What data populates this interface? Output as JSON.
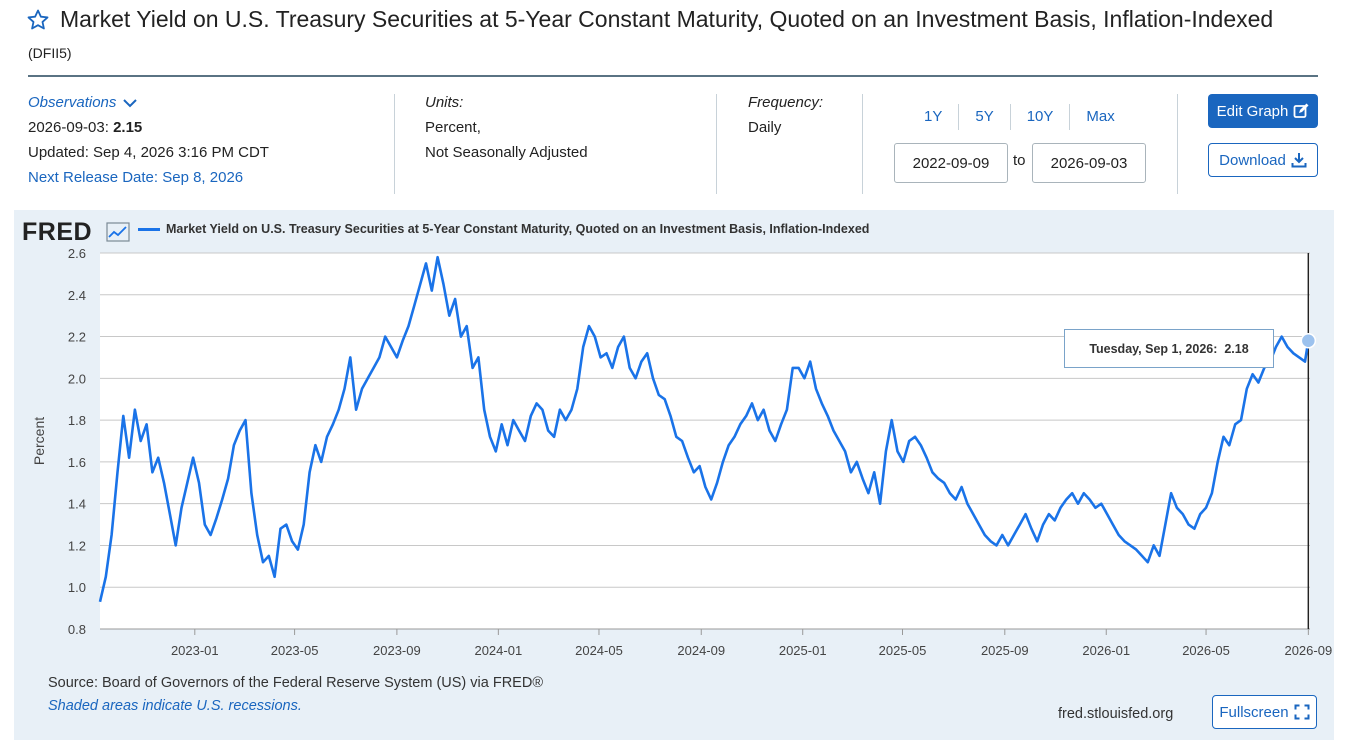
{
  "header": {
    "title": "Market Yield on U.S. Treasury Securities at 5-Year Constant Maturity, Quoted on an Investment Basis, Inflation-Indexed",
    "series_id": "(DFII5)"
  },
  "observations": {
    "label": "Observations",
    "latest_date": "2026-09-03:",
    "latest_value": "2.15",
    "updated": "Updated: Sep 4, 2026 3:16 PM CDT",
    "next_release": "Next Release Date: Sep 8, 2026"
  },
  "units": {
    "label": "Units:",
    "line1": "Percent,",
    "line2": "Not Seasonally Adjusted"
  },
  "frequency": {
    "label": "Frequency:",
    "value": "Daily"
  },
  "range": {
    "buttons": [
      "1Y",
      "5Y",
      "10Y",
      "Max"
    ],
    "start": "2022-09-09",
    "to_label": "to",
    "end": "2026-09-03"
  },
  "actions": {
    "edit": "Edit Graph",
    "download": "Download",
    "fullscreen": "Fullscreen"
  },
  "colors": {
    "series": "#1a73e8",
    "link": "#1a66bf",
    "panel": "#e8f0f7"
  },
  "icons": {
    "star": "star-icon",
    "chevron": "chevron-down-icon",
    "edit": "edit-icon",
    "download": "download-icon",
    "fullscreen": "fullscreen-icon",
    "logo_graph": "graph-icon"
  },
  "footer": {
    "source": "Source: Board of Governors of the Federal Reserve System (US) via FRED®",
    "recession_note": "Shaded areas indicate U.S. recessions.",
    "site": "fred.stlouisfed.org"
  },
  "logo": {
    "text": "FRED"
  },
  "tooltip": {
    "date": "Tuesday, Sep 1, 2026:",
    "value": "2.18"
  },
  "chart_data": {
    "type": "line",
    "title": "Market Yield on U.S. Treasury Securities at 5-Year Constant Maturity, Quoted on an Investment Basis, Inflation-Indexed",
    "ylabel": "Percent",
    "xlabel": "",
    "ylim": [
      0.8,
      2.6
    ],
    "xlim": [
      "2022-09-09",
      "2026-09-03"
    ],
    "yticks": [
      0.8,
      1.0,
      1.2,
      1.4,
      1.6,
      1.8,
      2.0,
      2.2,
      2.4,
      2.6
    ],
    "xticks": [
      "2023-01",
      "2023-05",
      "2023-09",
      "2024-01",
      "2024-05",
      "2024-09",
      "2025-01",
      "2025-05",
      "2025-09",
      "2026-01",
      "2026-05",
      "2026-09"
    ],
    "grid": true,
    "legend": "top-left",
    "series": [
      {
        "name": "Market Yield on U.S. Treasury Securities at 5-Year Constant Maturity, Quoted on an Investment Basis, Inflation-Indexed",
        "points": [
          [
            "2022-09-09",
            0.93
          ],
          [
            "2022-09-16",
            1.05
          ],
          [
            "2022-09-23",
            1.25
          ],
          [
            "2022-09-30",
            1.55
          ],
          [
            "2022-10-07",
            1.82
          ],
          [
            "2022-10-14",
            1.62
          ],
          [
            "2022-10-21",
            1.85
          ],
          [
            "2022-10-28",
            1.7
          ],
          [
            "2022-11-04",
            1.78
          ],
          [
            "2022-11-11",
            1.55
          ],
          [
            "2022-11-18",
            1.62
          ],
          [
            "2022-11-25",
            1.5
          ],
          [
            "2022-12-02",
            1.35
          ],
          [
            "2022-12-09",
            1.2
          ],
          [
            "2022-12-16",
            1.38
          ],
          [
            "2022-12-23",
            1.5
          ],
          [
            "2022-12-30",
            1.62
          ],
          [
            "2023-01-06",
            1.5
          ],
          [
            "2023-01-13",
            1.3
          ],
          [
            "2023-01-20",
            1.25
          ],
          [
            "2023-01-27",
            1.33
          ],
          [
            "2023-02-03",
            1.42
          ],
          [
            "2023-02-10",
            1.52
          ],
          [
            "2023-02-17",
            1.68
          ],
          [
            "2023-02-24",
            1.75
          ],
          [
            "2023-03-03",
            1.8
          ],
          [
            "2023-03-10",
            1.45
          ],
          [
            "2023-03-17",
            1.25
          ],
          [
            "2023-03-24",
            1.12
          ],
          [
            "2023-03-31",
            1.15
          ],
          [
            "2023-04-07",
            1.05
          ],
          [
            "2023-04-14",
            1.28
          ],
          [
            "2023-04-21",
            1.3
          ],
          [
            "2023-04-28",
            1.22
          ],
          [
            "2023-05-05",
            1.18
          ],
          [
            "2023-05-12",
            1.3
          ],
          [
            "2023-05-19",
            1.55
          ],
          [
            "2023-05-26",
            1.68
          ],
          [
            "2023-06-02",
            1.6
          ],
          [
            "2023-06-09",
            1.72
          ],
          [
            "2023-06-16",
            1.78
          ],
          [
            "2023-06-23",
            1.85
          ],
          [
            "2023-06-30",
            1.95
          ],
          [
            "2023-07-07",
            2.1
          ],
          [
            "2023-07-14",
            1.85
          ],
          [
            "2023-07-21",
            1.95
          ],
          [
            "2023-07-28",
            2.0
          ],
          [
            "2023-08-04",
            2.05
          ],
          [
            "2023-08-11",
            2.1
          ],
          [
            "2023-08-18",
            2.2
          ],
          [
            "2023-08-25",
            2.15
          ],
          [
            "2023-09-01",
            2.1
          ],
          [
            "2023-09-08",
            2.18
          ],
          [
            "2023-09-15",
            2.25
          ],
          [
            "2023-09-22",
            2.35
          ],
          [
            "2023-09-29",
            2.45
          ],
          [
            "2023-10-06",
            2.55
          ],
          [
            "2023-10-13",
            2.42
          ],
          [
            "2023-10-20",
            2.58
          ],
          [
            "2023-10-27",
            2.45
          ],
          [
            "2023-11-03",
            2.3
          ],
          [
            "2023-11-10",
            2.38
          ],
          [
            "2023-11-17",
            2.2
          ],
          [
            "2023-11-24",
            2.25
          ],
          [
            "2023-12-01",
            2.05
          ],
          [
            "2023-12-08",
            2.1
          ],
          [
            "2023-12-15",
            1.85
          ],
          [
            "2023-12-22",
            1.72
          ],
          [
            "2023-12-29",
            1.65
          ],
          [
            "2024-01-05",
            1.78
          ],
          [
            "2024-01-12",
            1.68
          ],
          [
            "2024-01-19",
            1.8
          ],
          [
            "2024-01-26",
            1.75
          ],
          [
            "2024-02-02",
            1.7
          ],
          [
            "2024-02-09",
            1.82
          ],
          [
            "2024-02-16",
            1.88
          ],
          [
            "2024-02-23",
            1.85
          ],
          [
            "2024-03-01",
            1.75
          ],
          [
            "2024-03-08",
            1.72
          ],
          [
            "2024-03-15",
            1.85
          ],
          [
            "2024-03-22",
            1.8
          ],
          [
            "2024-03-29",
            1.85
          ],
          [
            "2024-04-05",
            1.95
          ],
          [
            "2024-04-12",
            2.15
          ],
          [
            "2024-04-19",
            2.25
          ],
          [
            "2024-04-26",
            2.2
          ],
          [
            "2024-05-03",
            2.1
          ],
          [
            "2024-05-10",
            2.12
          ],
          [
            "2024-05-17",
            2.05
          ],
          [
            "2024-05-24",
            2.15
          ],
          [
            "2024-05-31",
            2.2
          ],
          [
            "2024-06-07",
            2.05
          ],
          [
            "2024-06-14",
            2.0
          ],
          [
            "2024-06-21",
            2.08
          ],
          [
            "2024-06-28",
            2.12
          ],
          [
            "2024-07-05",
            2.0
          ],
          [
            "2024-07-12",
            1.92
          ],
          [
            "2024-07-19",
            1.9
          ],
          [
            "2024-07-26",
            1.82
          ],
          [
            "2024-08-02",
            1.72
          ],
          [
            "2024-08-09",
            1.7
          ],
          [
            "2024-08-16",
            1.62
          ],
          [
            "2024-08-23",
            1.55
          ],
          [
            "2024-08-30",
            1.58
          ],
          [
            "2024-09-06",
            1.48
          ],
          [
            "2024-09-13",
            1.42
          ],
          [
            "2024-09-20",
            1.5
          ],
          [
            "2024-09-27",
            1.6
          ],
          [
            "2024-10-04",
            1.68
          ],
          [
            "2024-10-11",
            1.72
          ],
          [
            "2024-10-18",
            1.78
          ],
          [
            "2024-10-25",
            1.82
          ],
          [
            "2024-11-01",
            1.88
          ],
          [
            "2024-11-08",
            1.8
          ],
          [
            "2024-11-15",
            1.85
          ],
          [
            "2024-11-22",
            1.75
          ],
          [
            "2024-11-29",
            1.7
          ],
          [
            "2024-12-06",
            1.78
          ],
          [
            "2024-12-13",
            1.85
          ],
          [
            "2024-12-20",
            2.05
          ],
          [
            "2024-12-27",
            2.05
          ],
          [
            "2025-01-03",
            2.0
          ],
          [
            "2025-01-10",
            2.08
          ],
          [
            "2025-01-17",
            1.95
          ],
          [
            "2025-01-24",
            1.88
          ],
          [
            "2025-01-31",
            1.82
          ],
          [
            "2025-02-07",
            1.75
          ],
          [
            "2025-02-14",
            1.7
          ],
          [
            "2025-02-21",
            1.65
          ],
          [
            "2025-02-28",
            1.55
          ],
          [
            "2025-03-07",
            1.6
          ],
          [
            "2025-03-14",
            1.52
          ],
          [
            "2025-03-21",
            1.45
          ],
          [
            "2025-03-28",
            1.55
          ],
          [
            "2025-04-04",
            1.4
          ],
          [
            "2025-04-11",
            1.65
          ],
          [
            "2025-04-18",
            1.8
          ],
          [
            "2025-04-25",
            1.65
          ],
          [
            "2025-05-02",
            1.6
          ],
          [
            "2025-05-09",
            1.7
          ],
          [
            "2025-05-16",
            1.72
          ],
          [
            "2025-05-23",
            1.68
          ],
          [
            "2025-05-30",
            1.62
          ],
          [
            "2025-06-06",
            1.55
          ],
          [
            "2025-06-13",
            1.52
          ],
          [
            "2025-06-20",
            1.5
          ],
          [
            "2025-06-27",
            1.45
          ],
          [
            "2025-07-04",
            1.42
          ],
          [
            "2025-07-11",
            1.48
          ],
          [
            "2025-07-18",
            1.4
          ],
          [
            "2025-07-25",
            1.35
          ],
          [
            "2025-08-01",
            1.3
          ],
          [
            "2025-08-08",
            1.25
          ],
          [
            "2025-08-15",
            1.22
          ],
          [
            "2025-08-22",
            1.2
          ],
          [
            "2025-08-29",
            1.25
          ],
          [
            "2025-09-05",
            1.2
          ],
          [
            "2025-09-12",
            1.25
          ],
          [
            "2025-09-19",
            1.3
          ],
          [
            "2025-09-26",
            1.35
          ],
          [
            "2025-10-03",
            1.28
          ],
          [
            "2025-10-10",
            1.22
          ],
          [
            "2025-10-17",
            1.3
          ],
          [
            "2025-10-24",
            1.35
          ],
          [
            "2025-10-31",
            1.32
          ],
          [
            "2025-11-07",
            1.38
          ],
          [
            "2025-11-14",
            1.42
          ],
          [
            "2025-11-21",
            1.45
          ],
          [
            "2025-11-28",
            1.4
          ],
          [
            "2025-12-05",
            1.45
          ],
          [
            "2025-12-12",
            1.42
          ],
          [
            "2025-12-19",
            1.38
          ],
          [
            "2025-12-26",
            1.4
          ],
          [
            "2026-01-02",
            1.35
          ],
          [
            "2026-01-09",
            1.3
          ],
          [
            "2026-01-16",
            1.25
          ],
          [
            "2026-01-23",
            1.22
          ],
          [
            "2026-01-30",
            1.2
          ],
          [
            "2026-02-06",
            1.18
          ],
          [
            "2026-02-13",
            1.15
          ],
          [
            "2026-02-20",
            1.12
          ],
          [
            "2026-02-27",
            1.2
          ],
          [
            "2026-03-06",
            1.15
          ],
          [
            "2026-03-13",
            1.3
          ],
          [
            "2026-03-20",
            1.45
          ],
          [
            "2026-03-27",
            1.38
          ],
          [
            "2026-04-03",
            1.35
          ],
          [
            "2026-04-10",
            1.3
          ],
          [
            "2026-04-17",
            1.28
          ],
          [
            "2026-04-24",
            1.35
          ],
          [
            "2026-05-01",
            1.38
          ],
          [
            "2026-05-08",
            1.45
          ],
          [
            "2026-05-15",
            1.6
          ],
          [
            "2026-05-22",
            1.72
          ],
          [
            "2026-05-29",
            1.68
          ],
          [
            "2026-06-05",
            1.78
          ],
          [
            "2026-06-12",
            1.8
          ],
          [
            "2026-06-19",
            1.95
          ],
          [
            "2026-06-26",
            2.02
          ],
          [
            "2026-07-03",
            1.98
          ],
          [
            "2026-07-10",
            2.05
          ],
          [
            "2026-07-17",
            2.08
          ],
          [
            "2026-07-24",
            2.15
          ],
          [
            "2026-07-31",
            2.2
          ],
          [
            "2026-08-07",
            2.15
          ],
          [
            "2026-08-14",
            2.12
          ],
          [
            "2026-08-21",
            2.1
          ],
          [
            "2026-08-28",
            2.08
          ],
          [
            "2026-09-01",
            2.18
          ],
          [
            "2026-09-03",
            2.15
          ]
        ]
      }
    ]
  }
}
